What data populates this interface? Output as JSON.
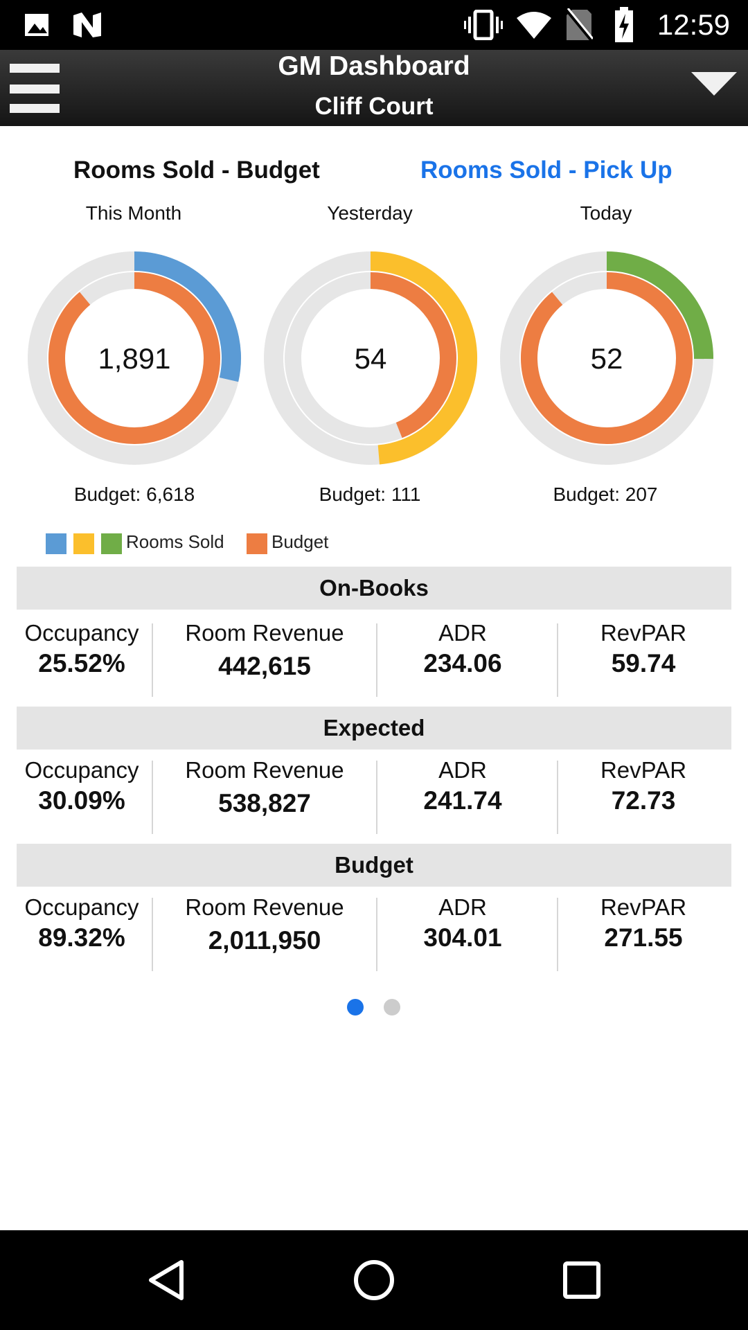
{
  "status_bar": {
    "time": "12:59",
    "icons": [
      "image-icon",
      "n-logo-icon",
      "vibrate-icon",
      "wifi-icon",
      "no-sim-icon",
      "battery-charging-icon"
    ]
  },
  "header": {
    "title": "GM Dashboard",
    "subtitle": "Cliff Court",
    "menu_icon": "hamburger-menu-icon",
    "dropdown_icon": "triangle-down-icon"
  },
  "tabs": [
    {
      "label": "Rooms Sold - Budget",
      "active": true,
      "color": "#111111"
    },
    {
      "label": "Rooms Sold - Pick Up",
      "active": false,
      "color": "#1a73e8"
    }
  ],
  "chart_data": {
    "type": "donut",
    "charts": [
      {
        "period": "This Month",
        "rooms_sold": 1891,
        "rooms_sold_label": "1,891",
        "budget": 6618,
        "budget_label": "Budget: 6,618",
        "sold_color": "#5b9bd5"
      },
      {
        "period": "Yesterday",
        "rooms_sold": 54,
        "rooms_sold_label": "54",
        "budget": 111,
        "budget_label": "Budget: 111",
        "sold_color": "#fbbf2c"
      },
      {
        "period": "Today",
        "rooms_sold": 52,
        "rooms_sold_label": "52",
        "budget": 207,
        "budget_label": "Budget: 207",
        "sold_color": "#70ad47"
      }
    ],
    "budget_fraction_shown": [
      0.89,
      0.44,
      0.89
    ],
    "budget_color": "#ed7d42",
    "track_color": "#e6e6e6",
    "legend": {
      "rooms_sold_label": "Rooms Sold",
      "budget_label": "Budget"
    }
  },
  "sections": [
    {
      "title": "On-Books",
      "metrics": [
        {
          "label": "Occupancy",
          "value": "25.52%"
        },
        {
          "label": "Room Revenue",
          "value": "442,615"
        },
        {
          "label": "ADR",
          "value": "234.06"
        },
        {
          "label": "RevPAR",
          "value": "59.74"
        }
      ]
    },
    {
      "title": "Expected",
      "metrics": [
        {
          "label": "Occupancy",
          "value": "30.09%"
        },
        {
          "label": "Room Revenue",
          "value": "538,827"
        },
        {
          "label": "ADR",
          "value": "241.74"
        },
        {
          "label": "RevPAR",
          "value": "72.73"
        }
      ]
    },
    {
      "title": "Budget",
      "metrics": [
        {
          "label": "Occupancy",
          "value": "89.32%"
        },
        {
          "label": "Room Revenue",
          "value": "2,011,950"
        },
        {
          "label": "ADR",
          "value": "304.01"
        },
        {
          "label": "RevPAR",
          "value": "271.55"
        }
      ]
    }
  ],
  "pagination": {
    "current": 1,
    "total": 2,
    "active_color": "#1a73e8",
    "inactive_color": "#cccccc"
  },
  "nav_bar": {
    "buttons": [
      "back-icon",
      "home-icon",
      "recents-icon"
    ]
  }
}
